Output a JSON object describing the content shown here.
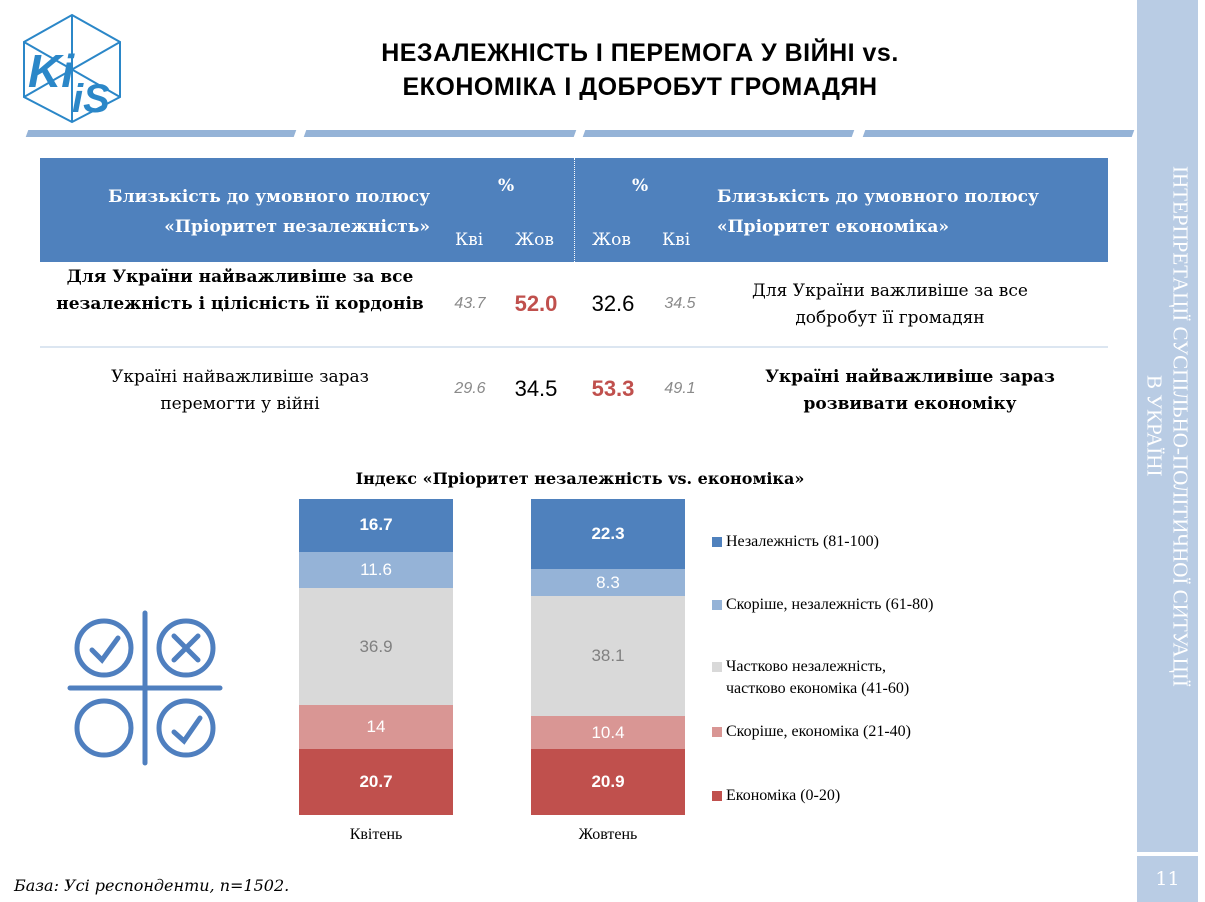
{
  "header": {
    "logo_text": "KiiS",
    "title_line1": "НЕЗАЛЕЖНІСТЬ І ПЕРЕМОГА У ВІЙНІ vs.",
    "title_line2": "ЕКОНОМІКА І ДОБРОБУТ ГРОМАДЯН"
  },
  "sidebar": {
    "text_line1": "ІНТЕРПРЕТАЦІЇ СУСПІЛЬНО-ПОЛІТИЧНОЇ СИТУАЦІЇ",
    "text_line2": "В УКРАЇНІ",
    "page_number": "11"
  },
  "table": {
    "left_header_line1": "Близькість до умовного полюсу",
    "left_header_line2": "«Пріоритет незалежність»",
    "right_header_line1": "Близькість до умовного полюсу",
    "right_header_line2": "«Пріоритет економіка»",
    "percent": "%",
    "col_apr": "Кві",
    "col_oct": "Жов",
    "rows": [
      {
        "left": "Для України найважливіше за все незалежність і цілісність її кордонів",
        "left_apr": "43.7",
        "left_oct": "52.0",
        "right_oct": "32.6",
        "right_apr": "34.5",
        "right": "Для України важливіше за все добробут її громадян"
      },
      {
        "left": "Україні найважливіше зараз перемогти у війні",
        "left_apr": "29.6",
        "left_oct": "34.5",
        "right_oct": "53.3",
        "right_apr": "49.1",
        "right": "Україні найважливіше зараз розвивати економіку"
      }
    ]
  },
  "icon": "tic-tac-toe-checks-icon",
  "chart_data": {
    "type": "bar",
    "stacked": true,
    "title": "Індекс «Пріоритет незалежність vs. економіка»",
    "categories": [
      "Квітень",
      "Жовтень"
    ],
    "series": [
      {
        "name": "Незалежність (81-100)",
        "values": [
          16.7,
          22.3
        ],
        "color": "#4f81bd"
      },
      {
        "name": "Скоріше, незалежність (61-80)",
        "values": [
          11.6,
          8.3
        ],
        "color": "#95b3d7"
      },
      {
        "name": "Частково незалежність,\nчастково економіка (41-60)",
        "values": [
          36.9,
          38.1
        ],
        "color": "#d9d9d9"
      },
      {
        "name": "Скоріше, економіка (21-40)",
        "values": [
          14,
          10.4
        ],
        "color": "#d99694"
      },
      {
        "name": "Економіка (0-20)",
        "values": [
          20.7,
          20.9
        ],
        "color": "#c0504d"
      }
    ],
    "labels": [
      [
        "16.7",
        "22.3"
      ],
      [
        "11.6",
        "8.3"
      ],
      [
        "36.9",
        "38.1"
      ],
      [
        "14",
        "10.4"
      ],
      [
        "20.7",
        "20.9"
      ]
    ],
    "legend": "right"
  },
  "footer": "База: Усі респонденти, n=1502."
}
